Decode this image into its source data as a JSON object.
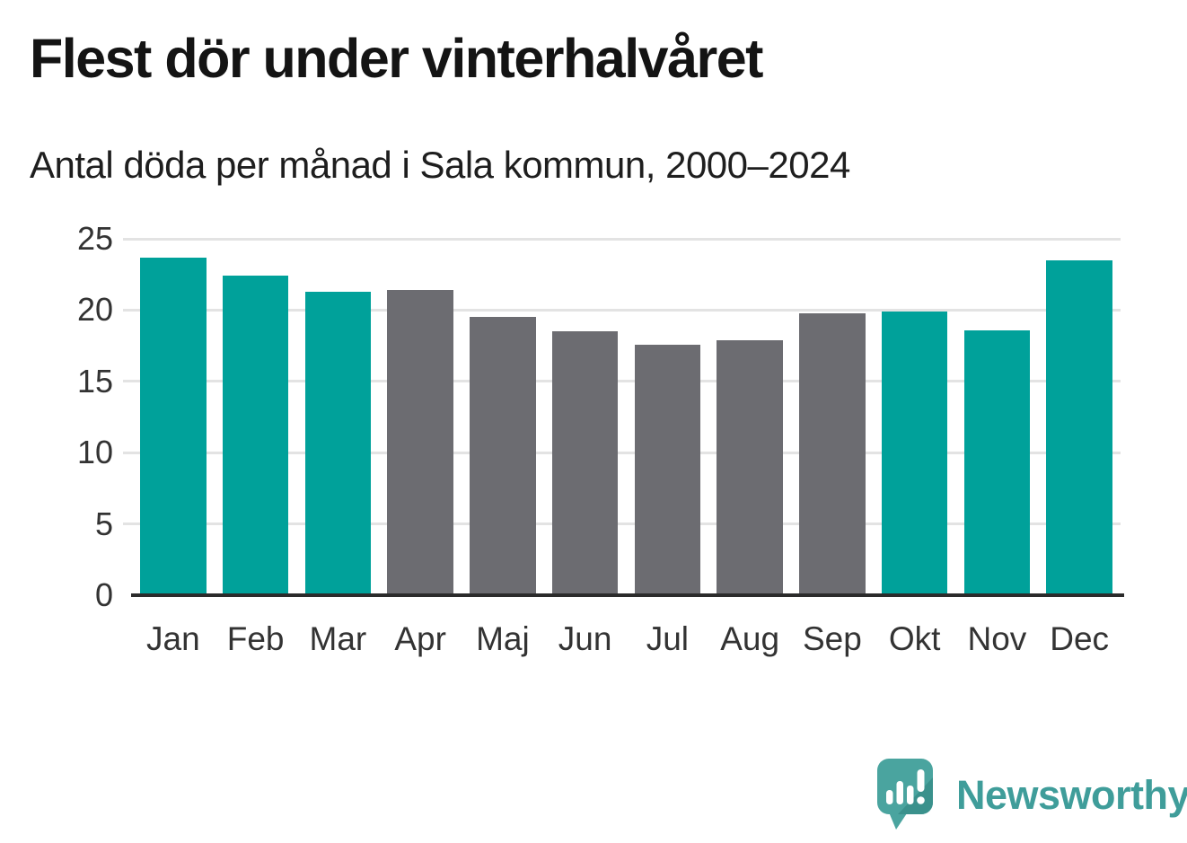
{
  "header": {
    "title": "Flest dör under vinterhalvåret",
    "subtitle": "Antal döda per månad i Sala kommun, 2000–2024"
  },
  "chart_data": {
    "type": "bar",
    "title": "Flest dör under vinterhalvåret",
    "subtitle": "Antal döda per månad i Sala kommun, 2000–2024",
    "categories": [
      "Jan",
      "Feb",
      "Mar",
      "Apr",
      "Maj",
      "Jun",
      "Jul",
      "Aug",
      "Sep",
      "Okt",
      "Nov",
      "Dec"
    ],
    "values": [
      23.7,
      22.4,
      21.3,
      21.4,
      19.5,
      18.5,
      17.6,
      17.9,
      19.8,
      19.9,
      18.6,
      23.5
    ],
    "seasons": [
      "winter",
      "winter",
      "winter",
      "summer",
      "summer",
      "summer",
      "summer",
      "summer",
      "summer",
      "winter",
      "winter",
      "winter"
    ],
    "palette": {
      "winter": "#00a19a",
      "summer": "#6c6c71"
    },
    "xlabel": "",
    "ylabel": "",
    "ylim": [
      0,
      25
    ],
    "yticks": [
      0,
      5,
      10,
      15,
      20,
      25
    ],
    "grid": true,
    "legend": "none",
    "gridline_color": "#e3e3e3",
    "axis_color": "#2b2b2b",
    "tick_label_color": "#333333"
  },
  "branding": {
    "logo_text": "Newsworthy",
    "logo_text_color": "#3f9d9a",
    "logo_icon": "speech-bubble-bar-chart-exclamation",
    "logo_icon_color": "#4aa49f",
    "logo_icon_fold_color": "#3a918c",
    "logo_icon_mark_color": "#ffffff"
  }
}
